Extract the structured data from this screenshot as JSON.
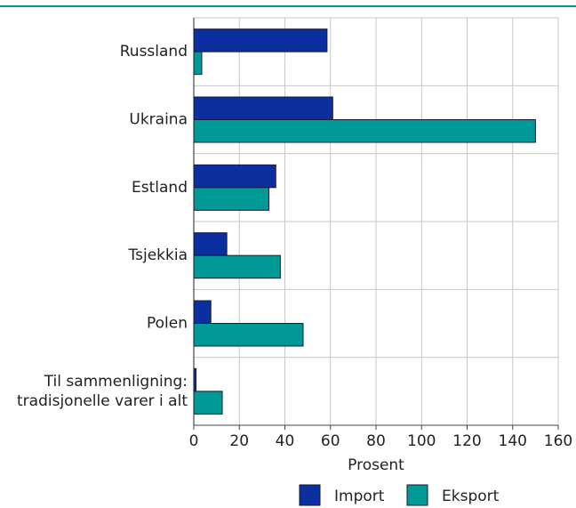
{
  "chart_data": {
    "type": "hbar",
    "categories": [
      "Russland",
      "Ukraina",
      "Estland",
      "Tsjekkia",
      "Polen",
      "Til sammenligning:\ntradisjonelle varer i alt"
    ],
    "series": [
      {
        "name": "Import",
        "color": "#0b2f9e",
        "values": [
          58.5,
          61,
          36,
          14.5,
          7.5,
          1
        ]
      },
      {
        "name": "Eksport",
        "color": "#009a96",
        "values": [
          3.5,
          150,
          33,
          38,
          48,
          12.5
        ]
      }
    ],
    "xlabel": "Prosent",
    "xlim": [
      0,
      160
    ],
    "xticks": [
      0,
      20,
      40,
      60,
      80,
      100,
      120,
      140,
      160
    ],
    "grid": true,
    "legend": "bottom"
  }
}
